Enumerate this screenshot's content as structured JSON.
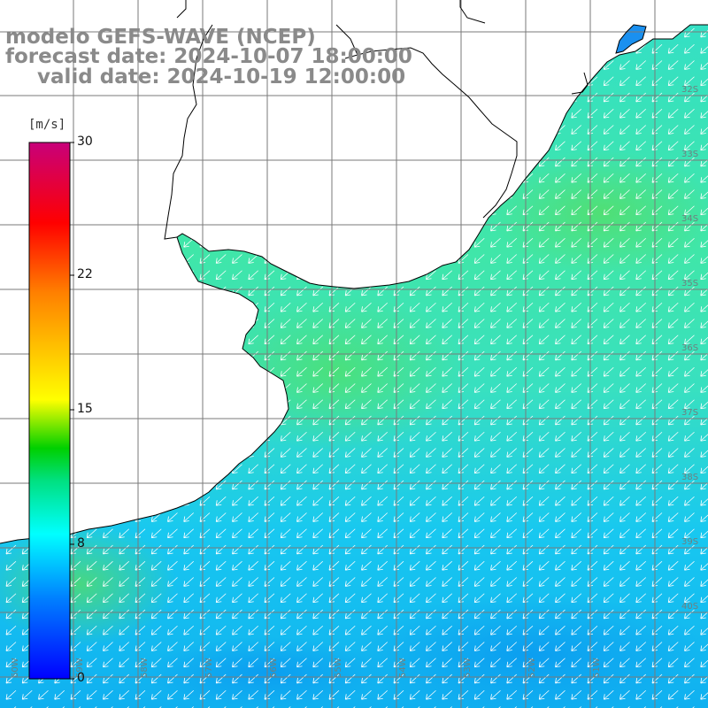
{
  "title": {
    "line1": "modelo GEFS-WAVE (NCEP)",
    "line2": "forecast date: 2024-10-07 18:00:00",
    "line3": "valid date: 2024-10-19 12:00:00"
  },
  "colorbar": {
    "unit": "[m/s]",
    "ticks": [
      "30",
      "22",
      "15",
      "8",
      "0"
    ],
    "tick_values": [
      30,
      22,
      15,
      8,
      0
    ],
    "colors": [
      "#0000ff",
      "#00a0ff",
      "#00ffff",
      "#00e000",
      "#ffff00",
      "#ff8000",
      "#ff0000",
      "#c8007a"
    ]
  },
  "map": {
    "land_color": "#ffffff",
    "coastline_color": "#000000",
    "grid": true,
    "lat_labels": [
      "32S",
      "33S",
      "34S",
      "35S",
      "36S",
      "37S",
      "38S",
      "39S",
      "40S"
    ],
    "lon_labels": [
      "60W",
      "59W",
      "58W",
      "57W",
      "56W",
      "55W",
      "54W",
      "53W",
      "52W",
      "51W"
    ],
    "wind_direction": "from NE (arrows pointing SW)"
  }
}
